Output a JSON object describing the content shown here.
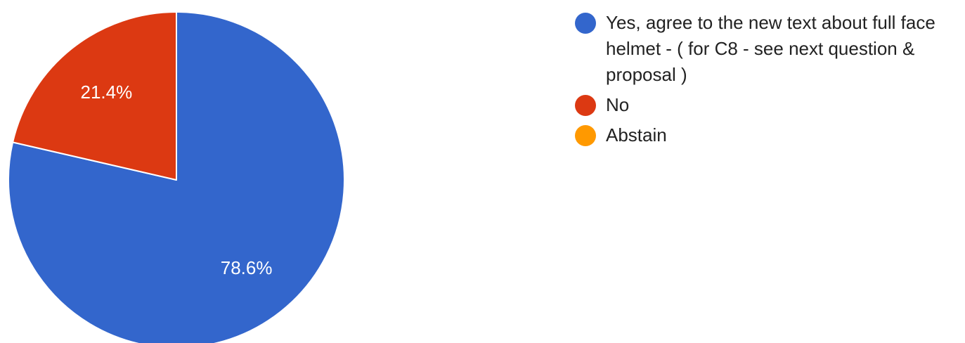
{
  "chart_data": {
    "type": "pie",
    "slices": [
      {
        "name": "Yes, agree to the new text about full face helmet - ( for C8 - see next question & proposal )",
        "value": 78.6,
        "label": "78.6%",
        "color": "#3366cc"
      },
      {
        "name": "No",
        "value": 21.4,
        "label": "21.4%",
        "color": "#dc3912"
      },
      {
        "name": "Abstain",
        "value": 0,
        "label": "",
        "color": "#ff9900"
      }
    ],
    "legend_position": "right",
    "start_angle": "12 o'clock",
    "direction": "clockwise"
  }
}
